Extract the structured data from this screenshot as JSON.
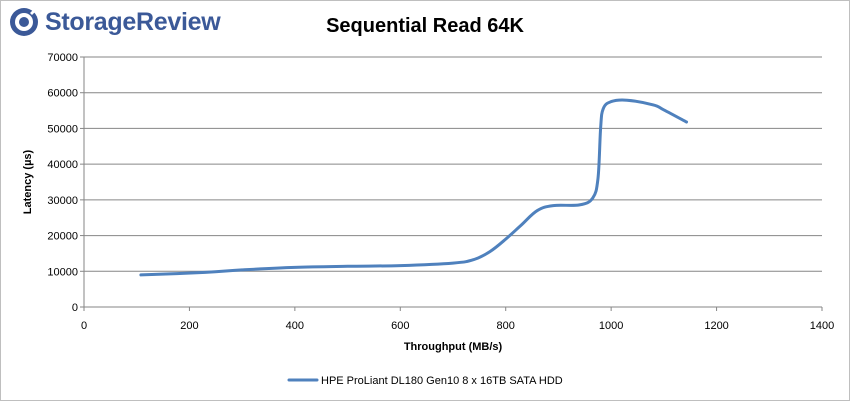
{
  "brand": {
    "name": "StorageReview",
    "color": "#3b5998"
  },
  "chart_data": {
    "type": "line",
    "title": "Sequential Read 64K",
    "xlabel": "Throughput (MB/s)",
    "ylabel": "Latency (µs)",
    "xlim": [
      0,
      1400
    ],
    "ylim": [
      0,
      70000
    ],
    "xticks": [
      0,
      200,
      400,
      600,
      800,
      1000,
      1200,
      1400
    ],
    "yticks": [
      0,
      10000,
      20000,
      30000,
      40000,
      50000,
      60000,
      70000
    ],
    "grid": "horizontal",
    "legend": "bottom",
    "series": [
      {
        "name": "HPE ProLiant DL180 Gen10 8 x 16TB SATA HDD",
        "color": "#4f81bd",
        "x": [
          108,
          230,
          300,
          400,
          500,
          600,
          700,
          740,
          770,
          800,
          830,
          860,
          890,
          940,
          965,
          975,
          980,
          985,
          1000,
          1030,
          1080,
          1100,
          1143
        ],
        "y": [
          9000,
          9700,
          10400,
          11100,
          11400,
          11600,
          12300,
          13300,
          15500,
          19000,
          23000,
          27000,
          28400,
          28600,
          30500,
          36000,
          50000,
          55500,
          57500,
          57900,
          56600,
          55200,
          51800
        ]
      }
    ]
  }
}
